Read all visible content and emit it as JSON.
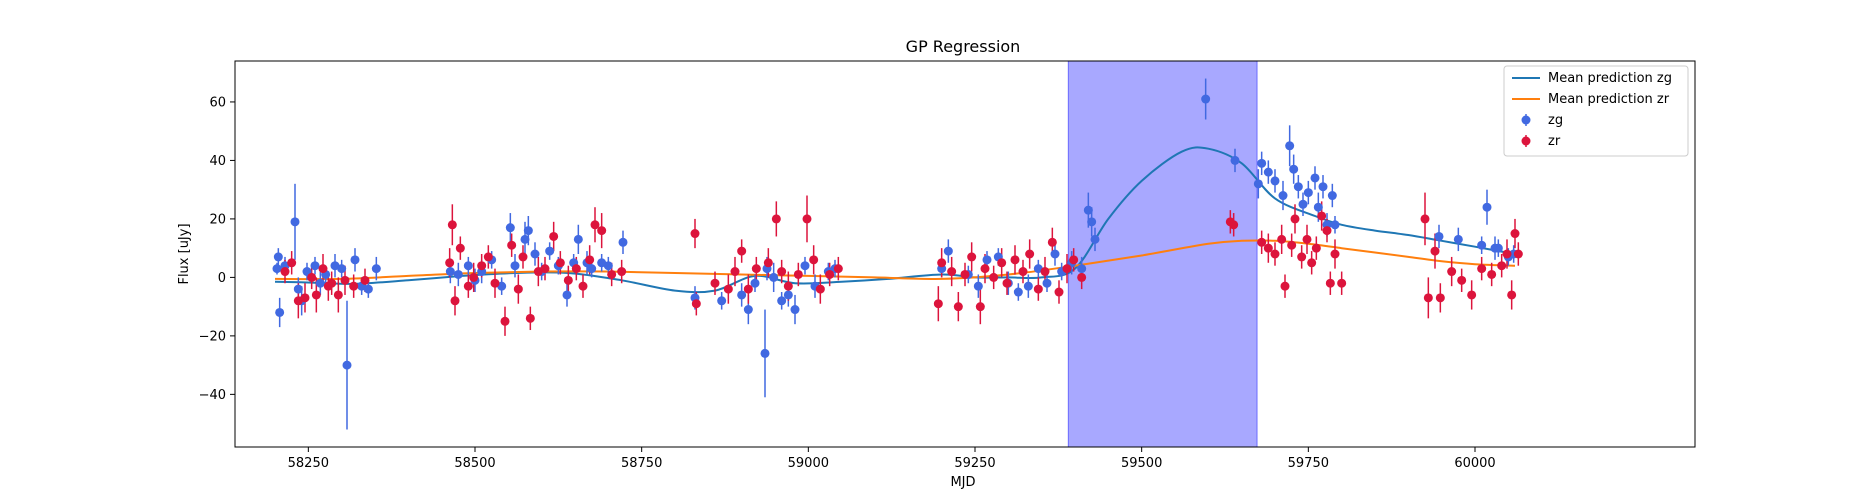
{
  "chart_data": {
    "type": "scatter",
    "title": "GP Regression",
    "xlabel": "MJD",
    "ylabel": "Flux [uJy]",
    "xlim": [
      58140,
      60330
    ],
    "ylim": [
      -58,
      74
    ],
    "xticks": [
      58250,
      58500,
      58750,
      59000,
      59250,
      59500,
      59750,
      60000
    ],
    "yticks": [
      -40,
      -20,
      0,
      20,
      40,
      60
    ],
    "legend_position": "top-right",
    "shaded_region": {
      "x0": 59390,
      "x1": 59673,
      "color": "#a8a8ff"
    },
    "lines": [
      {
        "name": "Mean prediction zg",
        "color": "#1f77b4",
        "x": [
          58200,
          58260,
          58320,
          58400,
          58480,
          58560,
          58640,
          58720,
          58800,
          58860,
          58920,
          58980,
          59050,
          59120,
          59200,
          59250,
          59300,
          59350,
          59400,
          59450,
          59500,
          59560,
          59600,
          59650,
          59700,
          59760,
          59800,
          59850,
          59900,
          59950,
          60000,
          60060
        ],
        "y": [
          -1.5,
          -1.8,
          -2.2,
          -1,
          0.5,
          1.5,
          1.5,
          -1,
          -4.5,
          -4.5,
          0.5,
          -2,
          -1.5,
          -0.5,
          1,
          0,
          0,
          0,
          3,
          20,
          33,
          43,
          44,
          39,
          27,
          21,
          18,
          16,
          14.5,
          12.5,
          10.5,
          8
        ]
      },
      {
        "name": "Mean prediction zr",
        "color": "#ff7f0e",
        "x": [
          58200,
          58300,
          58400,
          58500,
          58600,
          58700,
          58800,
          58900,
          59000,
          59100,
          59200,
          59300,
          59400,
          59500,
          59600,
          59650,
          59700,
          59750,
          59800,
          59850,
          59900,
          59950,
          60000,
          60060
        ],
        "y": [
          -0.5,
          -0.5,
          0.5,
          1.5,
          2,
          2,
          1.5,
          1,
          0.5,
          0,
          -0.5,
          1,
          4,
          7.5,
          11.5,
          12.5,
          12.5,
          11.5,
          10,
          8.5,
          7,
          5.5,
          4.5,
          4
        ]
      }
    ],
    "series": [
      {
        "name": "zg",
        "color": "#4169e1",
        "points": [
          [
            58203,
            3,
            2
          ],
          [
            58205,
            7,
            3
          ],
          [
            58207,
            -12,
            5
          ],
          [
            58215,
            4,
            3
          ],
          [
            58230,
            19,
            13
          ],
          [
            58235,
            -4,
            4
          ],
          [
            58240,
            -8,
            5
          ],
          [
            58248,
            2,
            3
          ],
          [
            58260,
            4,
            3
          ],
          [
            58268,
            -2,
            4
          ],
          [
            58276,
            1,
            3
          ],
          [
            58290,
            4,
            4
          ],
          [
            58300,
            3,
            3
          ],
          [
            58308,
            -30,
            22
          ],
          [
            58320,
            6,
            4
          ],
          [
            58330,
            -3,
            3
          ],
          [
            58340,
            -4,
            3
          ],
          [
            58352,
            3,
            4
          ],
          [
            58463,
            2,
            4
          ],
          [
            58475,
            1,
            4
          ],
          [
            58490,
            4,
            3
          ],
          [
            58500,
            -1,
            4
          ],
          [
            58510,
            2,
            4
          ],
          [
            58525,
            6,
            3
          ],
          [
            58540,
            -3,
            3
          ],
          [
            58553,
            17,
            5
          ],
          [
            58560,
            4,
            4
          ],
          [
            58575,
            13,
            6
          ],
          [
            58580,
            16,
            5
          ],
          [
            58590,
            8,
            4
          ],
          [
            58600,
            2,
            3
          ],
          [
            58612,
            9,
            3
          ],
          [
            58625,
            4,
            3
          ],
          [
            58638,
            -6,
            4
          ],
          [
            58648,
            5,
            3
          ],
          [
            58655,
            13,
            5
          ],
          [
            58668,
            5,
            4
          ],
          [
            58675,
            3,
            3
          ],
          [
            58690,
            5,
            3
          ],
          [
            58700,
            4,
            3
          ],
          [
            58722,
            12,
            4
          ],
          [
            58830,
            -7,
            4
          ],
          [
            58870,
            -8,
            3
          ],
          [
            58900,
            -6,
            4
          ],
          [
            58910,
            -11,
            5
          ],
          [
            58920,
            -2,
            3
          ],
          [
            58935,
            -26,
            15
          ],
          [
            58938,
            3,
            4
          ],
          [
            58948,
            0,
            5
          ],
          [
            58960,
            -8,
            3
          ],
          [
            58970,
            -6,
            4
          ],
          [
            58980,
            -11,
            5
          ],
          [
            58995,
            4,
            3
          ],
          [
            59010,
            -3,
            4
          ],
          [
            59030,
            2,
            3
          ],
          [
            59040,
            3,
            3
          ],
          [
            59200,
            3,
            3
          ],
          [
            59210,
            9,
            4
          ],
          [
            59240,
            1,
            3
          ],
          [
            59255,
            -3,
            4
          ],
          [
            59268,
            6,
            3
          ],
          [
            59285,
            7,
            3
          ],
          [
            59300,
            -2,
            4
          ],
          [
            59315,
            -5,
            3
          ],
          [
            59330,
            -3,
            4
          ],
          [
            59345,
            3,
            3
          ],
          [
            59358,
            -2,
            3
          ],
          [
            59370,
            8,
            4
          ],
          [
            59380,
            2,
            3
          ],
          [
            59395,
            5,
            4
          ],
          [
            59410,
            3,
            4
          ],
          [
            59420,
            23,
            6
          ],
          [
            59425,
            19,
            5
          ],
          [
            59430,
            13,
            4
          ],
          [
            59596,
            61,
            7
          ],
          [
            59640,
            40,
            4
          ],
          [
            59675,
            32,
            5
          ],
          [
            59680,
            39,
            4
          ],
          [
            59690,
            36,
            4
          ],
          [
            59700,
            33,
            4
          ],
          [
            59712,
            28,
            5
          ],
          [
            59722,
            45,
            7
          ],
          [
            59728,
            37,
            5
          ],
          [
            59735,
            31,
            4
          ],
          [
            59742,
            25,
            4
          ],
          [
            59750,
            29,
            4
          ],
          [
            59760,
            34,
            4
          ],
          [
            59765,
            24,
            5
          ],
          [
            59772,
            31,
            4
          ],
          [
            59778,
            18,
            4
          ],
          [
            59786,
            28,
            4
          ],
          [
            59790,
            18,
            3
          ],
          [
            59946,
            14,
            4
          ],
          [
            59975,
            13,
            4
          ],
          [
            60010,
            11,
            3
          ],
          [
            60030,
            10,
            4
          ],
          [
            60018,
            24,
            6
          ],
          [
            60035,
            10,
            3
          ],
          [
            60050,
            7,
            3
          ],
          [
            60058,
            8,
            3
          ]
        ]
      },
      {
        "name": "zr",
        "color": "#dc143c",
        "points": [
          [
            58215,
            2,
            4
          ],
          [
            58225,
            5,
            4
          ],
          [
            58235,
            -8,
            6
          ],
          [
            58245,
            -7,
            5
          ],
          [
            58255,
            0,
            4
          ],
          [
            58262,
            -6,
            6
          ],
          [
            58272,
            3,
            5
          ],
          [
            58280,
            -3,
            5
          ],
          [
            58285,
            -2,
            4
          ],
          [
            58295,
            -6,
            6
          ],
          [
            58305,
            -1,
            5
          ],
          [
            58318,
            -3,
            4
          ],
          [
            58335,
            -1,
            4
          ],
          [
            58462,
            5,
            5
          ],
          [
            58466,
            18,
            7
          ],
          [
            58470,
            -8,
            5
          ],
          [
            58478,
            10,
            4
          ],
          [
            58490,
            -3,
            4
          ],
          [
            58498,
            0,
            5
          ],
          [
            58510,
            4,
            4
          ],
          [
            58520,
            7,
            4
          ],
          [
            58530,
            -2,
            5
          ],
          [
            58545,
            -15,
            5
          ],
          [
            58555,
            11,
            4
          ],
          [
            58565,
            -4,
            5
          ],
          [
            58572,
            7,
            4
          ],
          [
            58583,
            -14,
            4
          ],
          [
            58595,
            2,
            5
          ],
          [
            58605,
            3,
            4
          ],
          [
            58618,
            14,
            5
          ],
          [
            58628,
            5,
            4
          ],
          [
            58640,
            -1,
            5
          ],
          [
            58652,
            3,
            4
          ],
          [
            58662,
            -3,
            4
          ],
          [
            58672,
            6,
            5
          ],
          [
            58680,
            18,
            6
          ],
          [
            58690,
            16,
            6
          ],
          [
            58705,
            1,
            4
          ],
          [
            58720,
            2,
            4
          ],
          [
            58830,
            15,
            5
          ],
          [
            58832,
            -9,
            4
          ],
          [
            58860,
            -2,
            4
          ],
          [
            58880,
            -4,
            5
          ],
          [
            58890,
            2,
            5
          ],
          [
            58900,
            9,
            4
          ],
          [
            58910,
            -4,
            5
          ],
          [
            58922,
            3,
            4
          ],
          [
            58940,
            5,
            5
          ],
          [
            58952,
            20,
            6
          ],
          [
            58960,
            2,
            4
          ],
          [
            58970,
            -3,
            5
          ],
          [
            58985,
            1,
            4
          ],
          [
            58998,
            20,
            8
          ],
          [
            59008,
            6,
            5
          ],
          [
            59018,
            -4,
            5
          ],
          [
            59032,
            1,
            4
          ],
          [
            59045,
            3,
            4
          ],
          [
            59195,
            -9,
            6
          ],
          [
            59200,
            5,
            5
          ],
          [
            59215,
            2,
            5
          ],
          [
            59225,
            -10,
            5
          ],
          [
            59235,
            1,
            4
          ],
          [
            59245,
            7,
            5
          ],
          [
            59258,
            -10,
            6
          ],
          [
            59265,
            3,
            5
          ],
          [
            59278,
            0,
            4
          ],
          [
            59290,
            5,
            5
          ],
          [
            59298,
            -2,
            4
          ],
          [
            59310,
            6,
            5
          ],
          [
            59322,
            2,
            4
          ],
          [
            59332,
            8,
            5
          ],
          [
            59345,
            -4,
            4
          ],
          [
            59355,
            2,
            5
          ],
          [
            59366,
            12,
            5
          ],
          [
            59376,
            -5,
            4
          ],
          [
            59388,
            3,
            5
          ],
          [
            59398,
            6,
            4
          ],
          [
            59410,
            0,
            4
          ],
          [
            59633,
            19,
            4
          ],
          [
            59638,
            18,
            4
          ],
          [
            59680,
            12,
            4
          ],
          [
            59690,
            10,
            5
          ],
          [
            59700,
            8,
            4
          ],
          [
            59710,
            13,
            5
          ],
          [
            59715,
            -3,
            4
          ],
          [
            59725,
            11,
            4
          ],
          [
            59730,
            20,
            5
          ],
          [
            59740,
            7,
            4
          ],
          [
            59748,
            13,
            5
          ],
          [
            59755,
            5,
            4
          ],
          [
            59762,
            10,
            4
          ],
          [
            59770,
            21,
            5
          ],
          [
            59778,
            16,
            4
          ],
          [
            59783,
            -2,
            4
          ],
          [
            59790,
            8,
            5
          ],
          [
            59800,
            -2,
            4
          ],
          [
            59925,
            20,
            9
          ],
          [
            59930,
            -7,
            7
          ],
          [
            59940,
            9,
            6
          ],
          [
            59948,
            -7,
            5
          ],
          [
            59965,
            2,
            5
          ],
          [
            59980,
            -1,
            4
          ],
          [
            59995,
            -6,
            5
          ],
          [
            60010,
            3,
            4
          ],
          [
            60025,
            1,
            4
          ],
          [
            60040,
            4,
            4
          ],
          [
            60048,
            8,
            5
          ],
          [
            60055,
            -6,
            5
          ],
          [
            60060,
            15,
            5
          ],
          [
            60065,
            8,
            4
          ]
        ]
      }
    ]
  }
}
